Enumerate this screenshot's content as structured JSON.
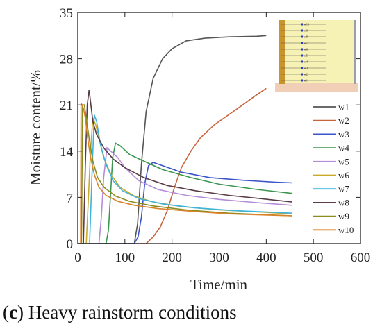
{
  "chart_data": {
    "type": "line",
    "xlabel": "Time/min",
    "ylabel": "Moisture content/%",
    "xlim": [
      0,
      600
    ],
    "ylim": [
      0,
      35
    ],
    "xticks": [
      0,
      100,
      200,
      300,
      400,
      500,
      600
    ],
    "yticks": [
      0,
      7,
      14,
      21,
      28,
      35
    ],
    "grid": false,
    "legend_position": "right",
    "inset": {
      "labels": [
        "w10",
        "w9",
        "w8",
        "w7",
        "w6",
        "w5",
        "w4",
        "w3",
        "w2",
        "w1"
      ]
    },
    "series": [
      {
        "name": "w1",
        "color": "#555555",
        "points": [
          [
            0,
            0
          ],
          [
            120,
            0
          ],
          [
            127,
            3
          ],
          [
            135,
            12
          ],
          [
            145,
            20
          ],
          [
            160,
            25
          ],
          [
            180,
            28
          ],
          [
            200,
            29.5
          ],
          [
            230,
            30.7
          ],
          [
            270,
            31.1
          ],
          [
            320,
            31.3
          ],
          [
            380,
            31.4
          ],
          [
            400,
            31.5
          ]
        ]
      },
      {
        "name": "w2",
        "color": "#c8643c",
        "points": [
          [
            0,
            0
          ],
          [
            145,
            0
          ],
          [
            160,
            1
          ],
          [
            175,
            2.5
          ],
          [
            190,
            5
          ],
          [
            205,
            8.5
          ],
          [
            220,
            11.5
          ],
          [
            240,
            14
          ],
          [
            260,
            16
          ],
          [
            290,
            18
          ],
          [
            320,
            19.5
          ],
          [
            350,
            21
          ],
          [
            375,
            22.3
          ],
          [
            400,
            23.5
          ]
        ]
      },
      {
        "name": "w3",
        "color": "#3c55c8",
        "points": [
          [
            0,
            0
          ],
          [
            120,
            0
          ],
          [
            128,
            1
          ],
          [
            135,
            4
          ],
          [
            142,
            9
          ],
          [
            150,
            11.8
          ],
          [
            160,
            12.3
          ],
          [
            180,
            11.8
          ],
          [
            220,
            10.8
          ],
          [
            280,
            10
          ],
          [
            350,
            9.6
          ],
          [
            420,
            9.3
          ],
          [
            455,
            9.2
          ]
        ]
      },
      {
        "name": "w4",
        "color": "#3c9650",
        "points": [
          [
            0,
            0
          ],
          [
            60,
            0
          ],
          [
            65,
            2
          ],
          [
            70,
            8
          ],
          [
            74,
            13
          ],
          [
            80,
            15.2
          ],
          [
            90,
            14.8
          ],
          [
            110,
            13.5
          ],
          [
            140,
            12.5
          ],
          [
            180,
            11.2
          ],
          [
            240,
            10
          ],
          [
            300,
            9
          ],
          [
            380,
            8.2
          ],
          [
            455,
            7.6
          ]
        ]
      },
      {
        "name": "w5",
        "color": "#b48cd8",
        "points": [
          [
            0,
            0
          ],
          [
            45,
            0
          ],
          [
            50,
            4
          ],
          [
            55,
            10
          ],
          [
            62,
            14.5
          ],
          [
            70,
            14
          ],
          [
            85,
            13
          ],
          [
            100,
            11.5
          ],
          [
            130,
            9.5
          ],
          [
            170,
            8.2
          ],
          [
            230,
            7.3
          ],
          [
            300,
            6.7
          ],
          [
            380,
            6.2
          ],
          [
            455,
            5.8
          ]
        ]
      },
      {
        "name": "w6",
        "color": "#c8aa28",
        "points": [
          [
            0,
            0
          ],
          [
            18,
            0
          ],
          [
            22,
            6
          ],
          [
            27,
            14
          ],
          [
            32,
            19
          ],
          [
            38,
            18
          ],
          [
            45,
            16
          ],
          [
            55,
            13
          ],
          [
            70,
            10.5
          ],
          [
            90,
            8.5
          ],
          [
            120,
            7.2
          ],
          [
            160,
            6.3
          ],
          [
            220,
            5.6
          ],
          [
            300,
            5.1
          ],
          [
            380,
            4.8
          ],
          [
            455,
            4.5
          ]
        ]
      },
      {
        "name": "w7",
        "color": "#3cb4dc",
        "points": [
          [
            0,
            0
          ],
          [
            25,
            0
          ],
          [
            30,
            10
          ],
          [
            35,
            19.5
          ],
          [
            40,
            18.5
          ],
          [
            48,
            15
          ],
          [
            60,
            12
          ],
          [
            75,
            9.5
          ],
          [
            95,
            8
          ],
          [
            130,
            6.8
          ],
          [
            180,
            6
          ],
          [
            250,
            5.4
          ],
          [
            330,
            5
          ],
          [
            455,
            4.6
          ]
        ]
      },
      {
        "name": "w8",
        "color": "#5a3c46",
        "points": [
          [
            0,
            0
          ],
          [
            12,
            0
          ],
          [
            16,
            12
          ],
          [
            20,
            21
          ],
          [
            24,
            23.3
          ],
          [
            27,
            21.5
          ],
          [
            32,
            18.5
          ],
          [
            40,
            16.5
          ],
          [
            55,
            14.5
          ],
          [
            75,
            12.8
          ],
          [
            100,
            11.5
          ],
          [
            140,
            10
          ],
          [
            190,
            8.8
          ],
          [
            250,
            8
          ],
          [
            320,
            7.3
          ],
          [
            390,
            6.8
          ],
          [
            455,
            6.3
          ]
        ]
      },
      {
        "name": "w9",
        "color": "#8c8c1e",
        "points": [
          [
            0,
            0
          ],
          [
            8,
            0
          ],
          [
            10,
            21
          ],
          [
            14,
            21
          ],
          [
            18,
            19
          ],
          [
            24,
            16
          ],
          [
            32,
            12.5
          ],
          [
            42,
            10
          ],
          [
            56,
            8.5
          ],
          [
            80,
            7.2
          ],
          [
            110,
            6.4
          ],
          [
            160,
            5.7
          ],
          [
            230,
            5.1
          ],
          [
            320,
            4.6
          ],
          [
            455,
            4.2
          ]
        ]
      },
      {
        "name": "w10",
        "color": "#dc8228",
        "points": [
          [
            0,
            0
          ],
          [
            6,
            0
          ],
          [
            7,
            21.3
          ],
          [
            12,
            20.5
          ],
          [
            16,
            19
          ],
          [
            20,
            16.5
          ],
          [
            26,
            13.5
          ],
          [
            35,
            10.5
          ],
          [
            45,
            8.5
          ],
          [
            60,
            7.3
          ],
          [
            85,
            6.4
          ],
          [
            120,
            5.8
          ],
          [
            170,
            5.3
          ],
          [
            240,
            4.9
          ],
          [
            320,
            4.5
          ],
          [
            455,
            4.2
          ]
        ]
      }
    ]
  },
  "caption": {
    "prefix": "(",
    "bold": "c",
    "text": ") Heavy rainstorm conditions"
  }
}
